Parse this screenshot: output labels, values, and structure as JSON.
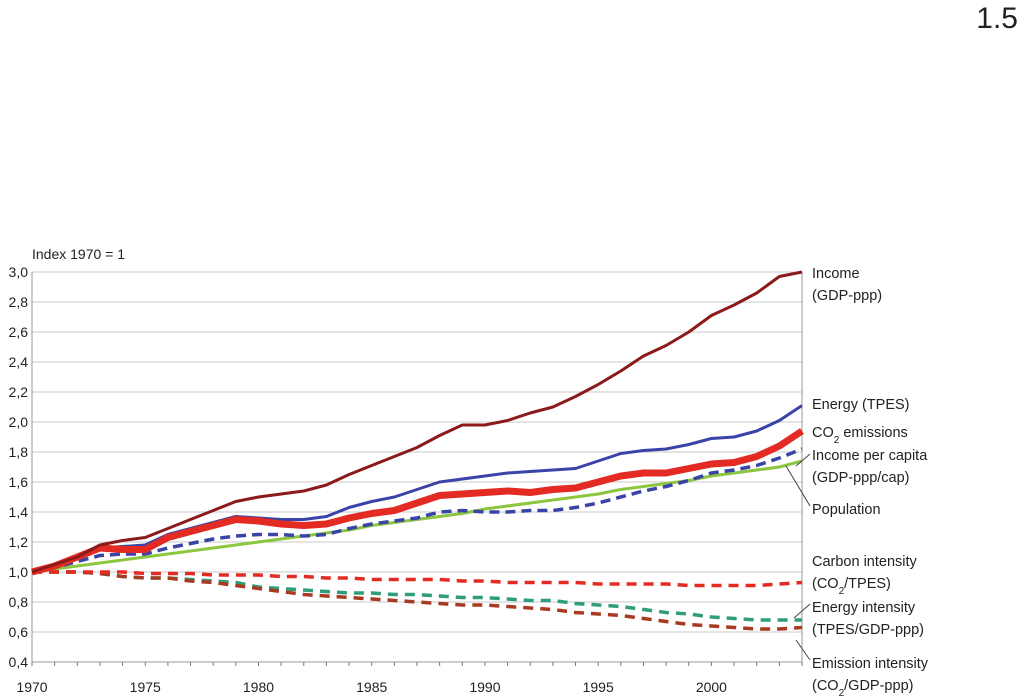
{
  "page_number": "1.5",
  "chart_data": {
    "type": "line",
    "index_label": "Index 1970 = 1",
    "xlim": [
      1970,
      2004
    ],
    "ylim": [
      0.4,
      3.0
    ],
    "x_ticks": [
      1970,
      1975,
      1980,
      1985,
      1990,
      1995,
      2000
    ],
    "x_tick_labels": [
      "1970",
      "1975",
      "1980",
      "1985",
      "1990",
      "1995",
      "2000"
    ],
    "y_ticks": [
      0.4,
      0.6,
      0.8,
      1.0,
      1.2,
      1.4,
      1.6,
      1.8,
      2.0,
      2.2,
      2.4,
      2.6,
      2.8,
      3.0
    ],
    "y_tick_labels": [
      "0,4",
      "0,6",
      "0,8",
      "1,0",
      "1,2",
      "1,4",
      "1,6",
      "1,8",
      "2,0",
      "2,2",
      "2,4",
      "2,6",
      "2,8",
      "3,0"
    ],
    "grid": "horizontal",
    "x": [
      1970,
      1971,
      1972,
      1973,
      1974,
      1975,
      1976,
      1977,
      1978,
      1979,
      1980,
      1981,
      1982,
      1983,
      1984,
      1985,
      1986,
      1987,
      1988,
      1989,
      1990,
      1991,
      1992,
      1993,
      1994,
      1995,
      1996,
      1997,
      1998,
      1999,
      2000,
      2001,
      2002,
      2003,
      2004
    ],
    "series": [
      {
        "key": "income",
        "label_lines": [
          "Income",
          "(GDP-ppp)"
        ],
        "color": "#8b1a1a",
        "width": 3,
        "dash": "",
        "values": [
          1.0,
          1.05,
          1.1,
          1.18,
          1.21,
          1.23,
          1.29,
          1.35,
          1.41,
          1.47,
          1.5,
          1.52,
          1.54,
          1.58,
          1.65,
          1.71,
          1.77,
          1.83,
          1.91,
          1.98,
          1.98,
          2.01,
          2.06,
          2.1,
          2.17,
          2.25,
          2.34,
          2.44,
          2.51,
          2.6,
          2.71,
          2.78,
          2.86,
          2.97,
          3.07
        ]
      },
      {
        "key": "energy",
        "label_lines": [
          "Energy (TPES)"
        ],
        "color": "#3a44a6",
        "width": 3,
        "dash": "",
        "values": [
          1.0,
          1.04,
          1.1,
          1.16,
          1.17,
          1.18,
          1.25,
          1.29,
          1.33,
          1.37,
          1.36,
          1.35,
          1.35,
          1.37,
          1.43,
          1.47,
          1.5,
          1.55,
          1.6,
          1.62,
          1.64,
          1.66,
          1.67,
          1.68,
          1.69,
          1.74,
          1.79,
          1.81,
          1.82,
          1.85,
          1.89,
          1.9,
          1.94,
          2.01,
          2.11
        ]
      },
      {
        "key": "co2",
        "label_lines": [
          "CO",
          "2",
          " emissions"
        ],
        "color": "#e32b24",
        "width": 7,
        "dash": "",
        "values": [
          1.0,
          1.04,
          1.1,
          1.16,
          1.15,
          1.15,
          1.23,
          1.27,
          1.31,
          1.35,
          1.34,
          1.32,
          1.31,
          1.32,
          1.36,
          1.39,
          1.41,
          1.46,
          1.51,
          1.52,
          1.53,
          1.54,
          1.53,
          1.55,
          1.56,
          1.6,
          1.64,
          1.66,
          1.66,
          1.69,
          1.72,
          1.73,
          1.77,
          1.84,
          1.94
        ]
      },
      {
        "key": "income_per_capita",
        "label_lines": [
          "Income per capita",
          "(GDP-ppp/cap)"
        ],
        "color": "#3a44a6",
        "width": 3.5,
        "dash": "10,6",
        "values": [
          1.0,
          1.03,
          1.07,
          1.11,
          1.12,
          1.12,
          1.16,
          1.19,
          1.22,
          1.24,
          1.25,
          1.25,
          1.24,
          1.25,
          1.29,
          1.32,
          1.34,
          1.36,
          1.4,
          1.41,
          1.4,
          1.4,
          1.41,
          1.41,
          1.43,
          1.46,
          1.5,
          1.54,
          1.57,
          1.61,
          1.66,
          1.68,
          1.71,
          1.76,
          1.82
        ]
      },
      {
        "key": "population",
        "label_lines": [
          "Population"
        ],
        "color": "#8cc63f",
        "width": 3,
        "dash": "",
        "values": [
          1.0,
          1.02,
          1.04,
          1.06,
          1.08,
          1.1,
          1.12,
          1.14,
          1.16,
          1.18,
          1.2,
          1.22,
          1.24,
          1.26,
          1.28,
          1.31,
          1.33,
          1.35,
          1.37,
          1.39,
          1.42,
          1.44,
          1.46,
          1.48,
          1.5,
          1.52,
          1.55,
          1.57,
          1.59,
          1.61,
          1.64,
          1.66,
          1.68,
          1.7,
          1.74
        ]
      },
      {
        "key": "carbon_intensity",
        "label_lines": [
          "Carbon intensity",
          "(CO",
          "2",
          "/TPES)"
        ],
        "color": "#e32b24",
        "width": 3.5,
        "dash": "10,7",
        "values": [
          1.0,
          1.0,
          1.0,
          1.0,
          1.0,
          0.99,
          0.99,
          0.99,
          0.98,
          0.98,
          0.98,
          0.97,
          0.97,
          0.96,
          0.96,
          0.95,
          0.95,
          0.95,
          0.95,
          0.94,
          0.94,
          0.93,
          0.93,
          0.93,
          0.93,
          0.92,
          0.92,
          0.92,
          0.92,
          0.91,
          0.91,
          0.91,
          0.91,
          0.92,
          0.93
        ]
      },
      {
        "key": "energy_intensity",
        "label_lines": [
          "Energy intensity",
          "(TPES/GDP-ppp)"
        ],
        "color": "#2e9e7a",
        "width": 3.5,
        "dash": "10,7",
        "values": [
          1.0,
          1.0,
          1.0,
          0.99,
          0.97,
          0.96,
          0.96,
          0.95,
          0.94,
          0.93,
          0.9,
          0.89,
          0.88,
          0.87,
          0.86,
          0.86,
          0.85,
          0.85,
          0.84,
          0.83,
          0.83,
          0.82,
          0.81,
          0.81,
          0.79,
          0.78,
          0.77,
          0.75,
          0.73,
          0.72,
          0.7,
          0.69,
          0.68,
          0.68,
          0.68
        ]
      },
      {
        "key": "emission_intensity",
        "label_lines": [
          "Emission intensity",
          "(CO",
          "2",
          "/GDP-ppp)"
        ],
        "color": "#a83a22",
        "width": 3.5,
        "dash": "10,7",
        "values": [
          1.0,
          1.0,
          1.0,
          0.99,
          0.97,
          0.96,
          0.96,
          0.94,
          0.93,
          0.91,
          0.89,
          0.87,
          0.85,
          0.84,
          0.83,
          0.82,
          0.81,
          0.8,
          0.79,
          0.78,
          0.78,
          0.77,
          0.76,
          0.75,
          0.73,
          0.72,
          0.71,
          0.69,
          0.67,
          0.65,
          0.64,
          0.63,
          0.62,
          0.62,
          0.63
        ]
      }
    ]
  }
}
